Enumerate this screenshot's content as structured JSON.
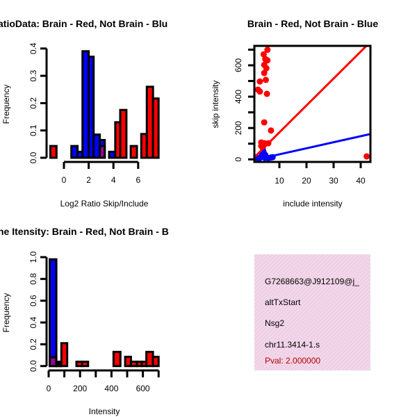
{
  "colors": {
    "red": "#ff0000",
    "blue": "#0000ff",
    "purple": "#8b008b",
    "pval": "#b00000",
    "infobox_bg": "#f5d8ec"
  },
  "chart_data": [
    {
      "type": "bar",
      "title": "atioData: Brain - Red, Not Brain - Blu",
      "xlabel": "Log2 Ratio Skip/Include",
      "ylabel": "Frequency",
      "xticks": [
        "0",
        "2",
        "4",
        "6"
      ],
      "xtick_values": [
        0,
        2,
        4,
        6
      ],
      "yticks": [
        "0.0",
        "0.1",
        "0.2",
        "0.3",
        "0.4"
      ],
      "ytick_values": [
        0,
        0.1,
        0.2,
        0.3,
        0.4
      ],
      "ylim": [
        0,
        0.4
      ],
      "bars": [
        {
          "series": "red",
          "x0": -1.1,
          "x1": -0.6,
          "value": 0.043
        },
        {
          "series": "blue",
          "x0": 0.6,
          "x1": 1.1,
          "value": 0.043
        },
        {
          "series": "blue",
          "x0": 1.1,
          "x1": 1.5,
          "value": 0.022
        },
        {
          "series": "blue",
          "x0": 1.5,
          "x1": 2.0,
          "value": 0.39
        },
        {
          "series": "blue",
          "x0": 2.0,
          "x1": 2.4,
          "value": 0.37
        },
        {
          "series": "blue",
          "x0": 2.4,
          "x1": 2.9,
          "value": 0.085
        },
        {
          "series": "blue",
          "x0": 2.9,
          "x1": 3.3,
          "value": 0.065
        },
        {
          "series": "purple",
          "x0": 2.9,
          "x1": 3.3,
          "value": 0.043
        },
        {
          "series": "blue",
          "x0": 3.65,
          "x1": 4.15,
          "value": 0.022
        },
        {
          "series": "red",
          "x0": 4.15,
          "x1": 4.55,
          "value": 0.13
        },
        {
          "series": "red",
          "x0": 4.55,
          "x1": 5.05,
          "value": 0.175
        },
        {
          "series": "red",
          "x0": 5.4,
          "x1": 5.9,
          "value": 0.043
        },
        {
          "series": "red",
          "x0": 6.25,
          "x1": 6.7,
          "value": 0.087
        },
        {
          "series": "red",
          "x0": 6.7,
          "x1": 7.2,
          "value": 0.26
        },
        {
          "series": "red",
          "x0": 7.2,
          "x1": 7.65,
          "value": 0.217
        }
      ]
    },
    {
      "type": "scatter",
      "title": "Brain - Red, Not Brain - Blue",
      "xlabel": "include intensity",
      "ylabel": "skip intensity",
      "xticks": [
        "10",
        "20",
        "30",
        "40"
      ],
      "xtick_values": [
        10,
        20,
        30,
        40
      ],
      "yticks": [
        "0",
        "200",
        "400",
        "600"
      ],
      "ytick_values": [
        0,
        100,
        200,
        300,
        400,
        500,
        600,
        700
      ],
      "ylabel_values": [
        0,
        200,
        400,
        600
      ],
      "xlim": [
        0.8,
        43.6
      ],
      "ylim": [
        -16,
        724
      ],
      "series": [
        {
          "name": "Brain",
          "color": "red",
          "points": [
            [
              5.6,
              699
            ],
            [
              4.2,
              670
            ],
            [
              4.8,
              640
            ],
            [
              5.6,
              632
            ],
            [
              4.4,
              603
            ],
            [
              5.2,
              581
            ],
            [
              4.4,
              551
            ],
            [
              5.0,
              507
            ],
            [
              2.8,
              497
            ],
            [
              2.1,
              445
            ],
            [
              2.8,
              433
            ],
            [
              5.4,
              418
            ],
            [
              4.4,
              236
            ],
            [
              6.9,
              184
            ],
            [
              3.3,
              108
            ],
            [
              4.4,
              103
            ],
            [
              5.9,
              103
            ],
            [
              3.3,
              86
            ],
            [
              3.9,
              71
            ],
            [
              42.2,
              19
            ]
          ],
          "fit": {
            "intercept": 0,
            "slope": 17.2
          }
        },
        {
          "name": "Not Brain",
          "color": "blue",
          "points": [
            [
              4.1,
              50
            ],
            [
              4.8,
              28
            ],
            [
              6.9,
              12
            ],
            [
              3.0,
              12
            ],
            [
              2.0,
              8
            ],
            [
              5.4,
              12
            ],
            [
              3.6,
              28
            ],
            [
              4.4,
              35
            ],
            [
              2.5,
              5
            ],
            [
              3.9,
              18
            ],
            [
              5.9,
              8
            ],
            [
              4.6,
              10
            ],
            [
              7.5,
              14
            ]
          ],
          "fit": {
            "intercept": -6.5,
            "slope": 3.86
          }
        }
      ]
    },
    {
      "type": "bar",
      "title": "ne Itensity: Brain - Red, Not Brain - B",
      "xlabel": "Intensity",
      "ylabel": "Frequency",
      "xticks": [
        "0",
        "200",
        "400",
        "600"
      ],
      "xtick_values": [
        0,
        100,
        200,
        300,
        400,
        500,
        600,
        700
      ],
      "xlabel_values": [
        0,
        200,
        400,
        600
      ],
      "yticks": [
        "0.0",
        "0.2",
        "0.4",
        "0.6",
        "0.8",
        "1.0"
      ],
      "ytick_values": [
        0,
        0.2,
        0.4,
        0.6,
        0.8,
        1.0
      ],
      "ylim": [
        0,
        1.0
      ],
      "bars": [
        {
          "series": "blue",
          "x0": 7,
          "x1": 49,
          "value": 0.98
        },
        {
          "series": "purple",
          "x0": 7,
          "x1": 49,
          "value": 0.08
        },
        {
          "series": "blue",
          "x0": 49,
          "x1": 81,
          "value": 0.04
        },
        {
          "series": "purple",
          "x0": 49,
          "x1": 81,
          "value": 0.02
        },
        {
          "series": "red",
          "x0": 81,
          "x1": 118,
          "value": 0.21
        },
        {
          "series": "red",
          "x0": 177,
          "x1": 214,
          "value": 0.04
        },
        {
          "series": "red",
          "x0": 214,
          "x1": 251,
          "value": 0.04
        },
        {
          "series": "red",
          "x0": 413,
          "x1": 457,
          "value": 0.13
        },
        {
          "series": "red",
          "x0": 487,
          "x1": 524,
          "value": 0.085
        },
        {
          "series": "red",
          "x0": 524,
          "x1": 561,
          "value": 0.04
        },
        {
          "series": "red",
          "x0": 561,
          "x1": 593,
          "value": 0.04
        },
        {
          "series": "red",
          "x0": 593,
          "x1": 622,
          "value": 0.04
        },
        {
          "series": "red",
          "x0": 622,
          "x1": 664,
          "value": 0.13
        },
        {
          "series": "red",
          "x0": 664,
          "x1": 700,
          "value": 0.085
        }
      ]
    }
  ],
  "info": {
    "id": "G7268663@J912109@j_",
    "type": "altTxStart",
    "gene": "Nsg2",
    "locus": "chr11.3414-1.s",
    "pval": "Pval: 2.000000"
  }
}
